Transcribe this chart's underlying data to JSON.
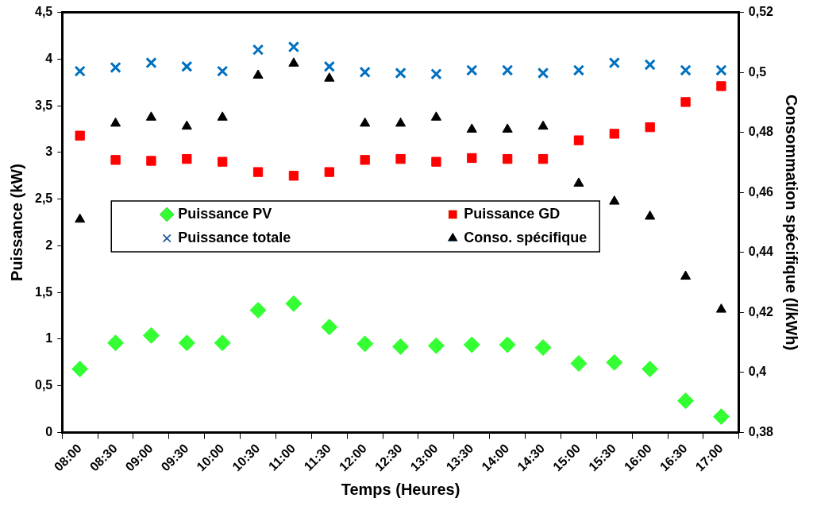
{
  "chart_data": {
    "type": "scatter",
    "xlabel": "Temps (Heures)",
    "ylabel": "Puissance (kW)",
    "y2label": "Consommation spécifique (l/kWh)",
    "categories": [
      "08:00",
      "08:30",
      "09:00",
      "09:30",
      "10:00",
      "10:30",
      "11:00",
      "11:30",
      "12:00",
      "12:30",
      "13:00",
      "13:30",
      "14:00",
      "14:30",
      "15:00",
      "15:30",
      "16:00",
      "16:30",
      "17:00"
    ],
    "series": [
      {
        "name": "Puissance PV",
        "color": "#33ff33",
        "marker": "diamond",
        "values": [
          0.68,
          0.96,
          1.04,
          0.96,
          0.96,
          1.31,
          1.38,
          1.13,
          0.95,
          0.92,
          0.93,
          0.94,
          0.94,
          0.91,
          0.74,
          0.75,
          0.68,
          0.34,
          0.17
        ]
      },
      {
        "name": "Puissance GD",
        "color": "#ff0000",
        "marker": "square",
        "values": [
          3.18,
          2.92,
          2.91,
          2.93,
          2.9,
          2.79,
          2.75,
          2.79,
          2.92,
          2.93,
          2.9,
          2.94,
          2.93,
          2.93,
          3.13,
          3.2,
          3.27,
          3.54,
          3.71
        ]
      },
      {
        "name": "Puissance totale",
        "color": "#0070c0",
        "marker": "cross",
        "values": [
          3.87,
          3.91,
          3.96,
          3.92,
          3.87,
          4.1,
          4.13,
          3.92,
          3.86,
          3.85,
          3.84,
          3.88,
          3.88,
          3.85,
          3.88,
          3.96,
          3.94,
          3.88,
          3.88
        ]
      },
      {
        "name": "Conso. spécifique",
        "color": "#000000",
        "marker": "triangle",
        "axis": "y2",
        "values": [
          0.451,
          0.483,
          0.485,
          0.482,
          0.485,
          0.499,
          0.503,
          0.498,
          0.483,
          0.483,
          0.485,
          0.481,
          0.481,
          0.482,
          0.463,
          0.457,
          0.452,
          0.432,
          0.421
        ]
      }
    ],
    "ylim": [
      0,
      4.5
    ],
    "yticks": [
      0,
      {
        "value": 0.5,
        "label": "0,5"
      },
      1,
      {
        "value": 1.5,
        "label": "1,5"
      },
      2,
      {
        "value": 2.5,
        "label": "2,5"
      },
      3,
      {
        "value": 3.5,
        "label": "3,5"
      },
      4,
      {
        "value": 4.5,
        "label": "4,5"
      }
    ],
    "y2lim": [
      0.38,
      0.52
    ],
    "y2ticks": [
      {
        "value": 0.38,
        "label": "0,38"
      },
      {
        "value": 0.4,
        "label": "0,4"
      },
      {
        "value": 0.42,
        "label": "0,42"
      },
      {
        "value": 0.44,
        "label": "0,44"
      },
      {
        "value": 0.46,
        "label": "0,46"
      },
      {
        "value": 0.48,
        "label": "0,48"
      },
      {
        "value": 0.5,
        "label": "0,5"
      },
      {
        "value": 0.52,
        "label": "0,52"
      }
    ],
    "grid": false,
    "legend": "center left"
  }
}
